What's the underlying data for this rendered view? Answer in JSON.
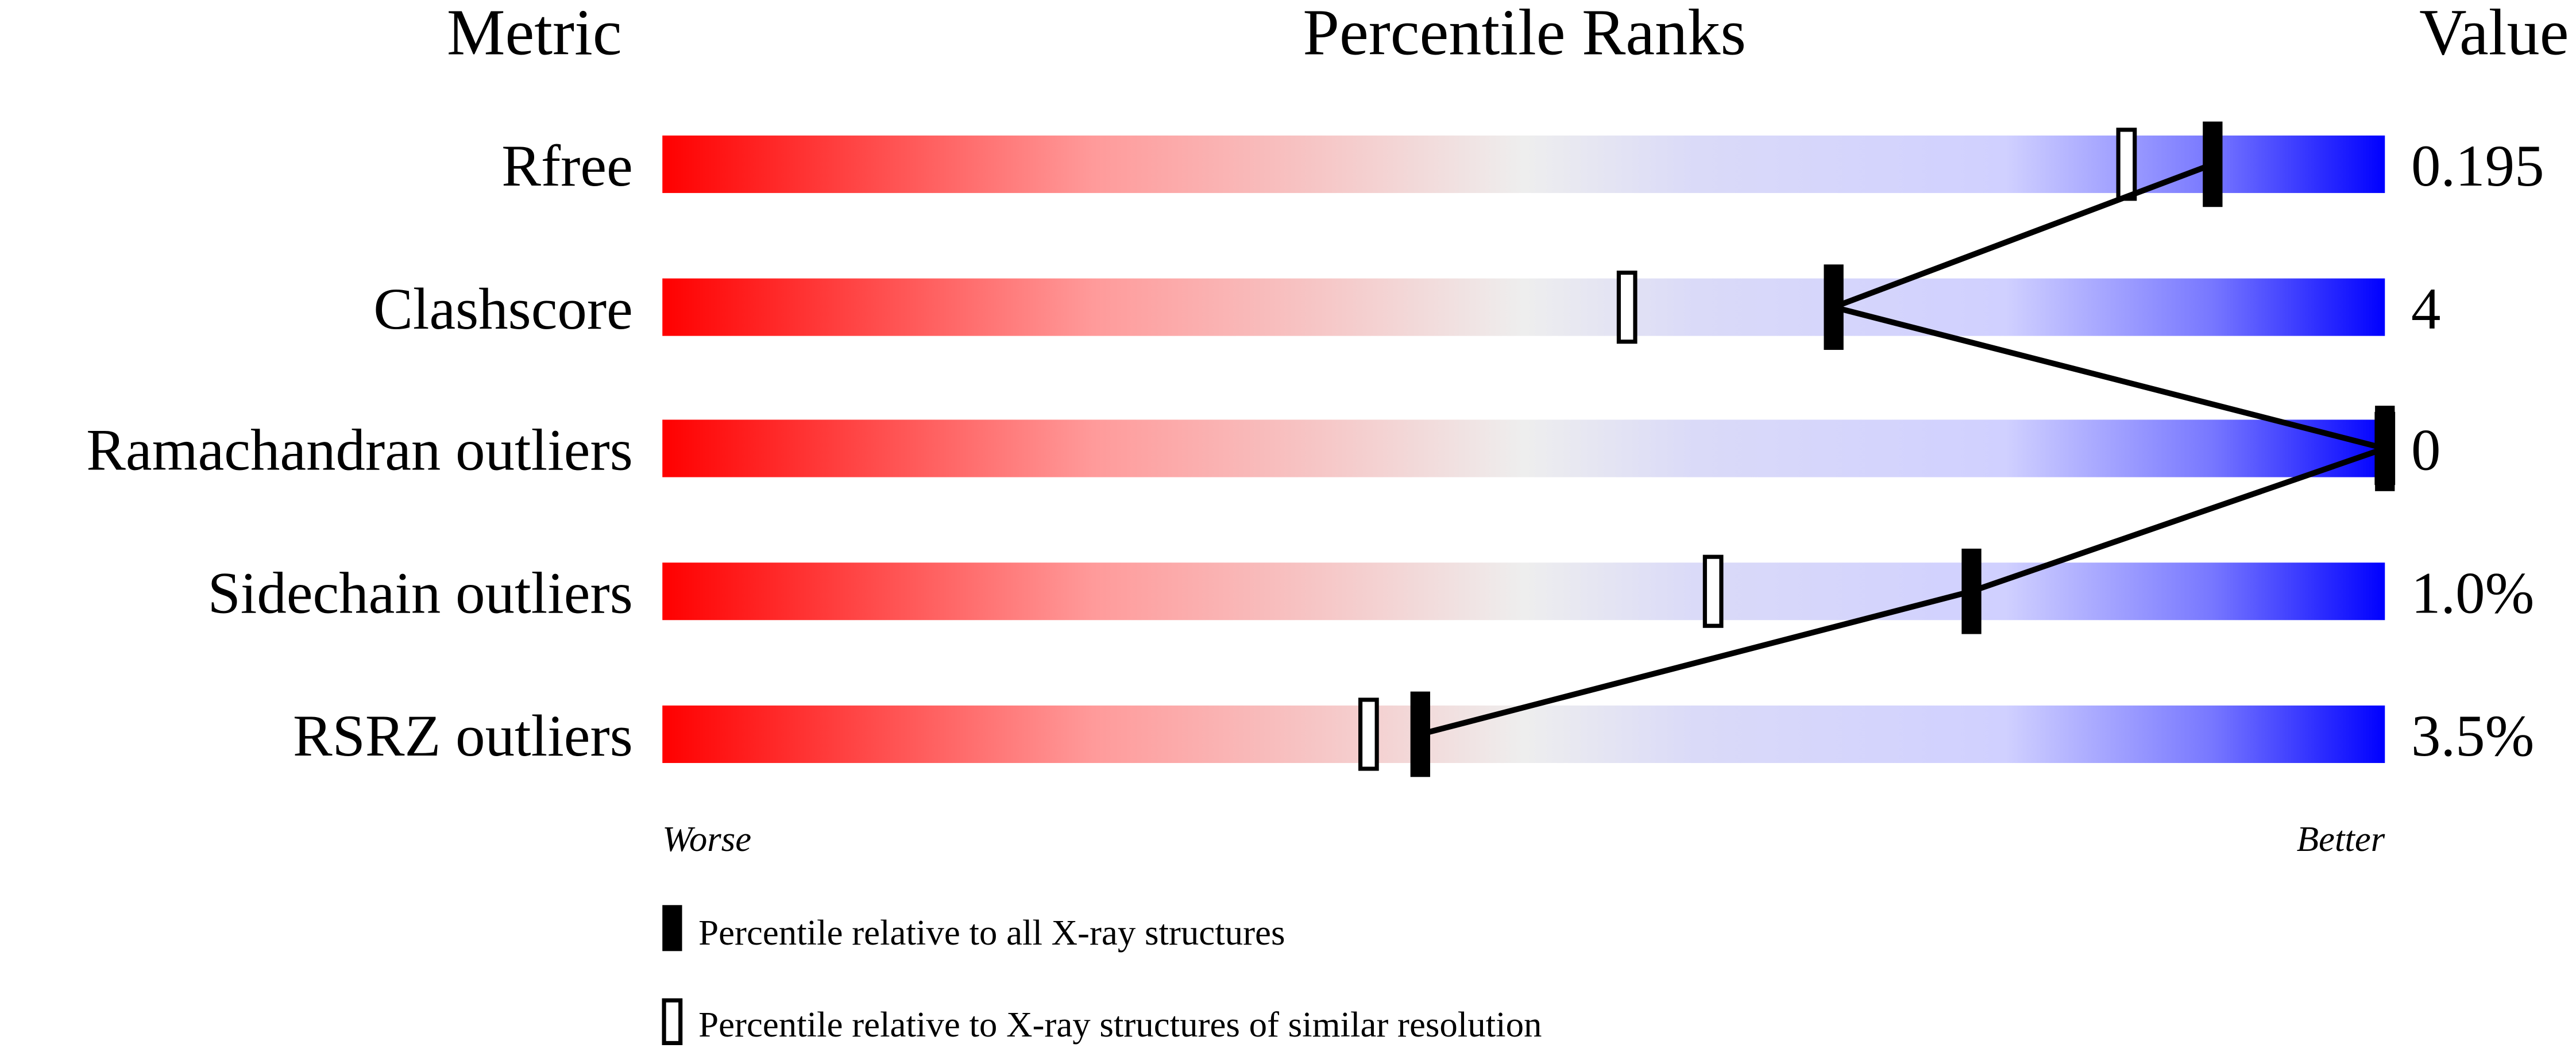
{
  "chart_data": {
    "type": "bar",
    "headers": {
      "metric": "Metric",
      "ranks": "Percentile Ranks",
      "value": "Value"
    },
    "xlim": [
      0,
      100
    ],
    "rows": [
      {
        "metric": "Rfree",
        "value": "0.195",
        "percentile_all": 90,
        "percentile_similar": 85
      },
      {
        "metric": "Clashscore",
        "value": "4",
        "percentile_all": 68,
        "percentile_similar": 56
      },
      {
        "metric": "Ramachandran outliers",
        "value": "0",
        "percentile_all": 100,
        "percentile_similar": 100
      },
      {
        "metric": "Sidechain outliers",
        "value": "1.0%",
        "percentile_all": 76,
        "percentile_similar": 61
      },
      {
        "metric": "RSRZ outliers",
        "value": "3.5%",
        "percentile_all": 44,
        "percentile_similar": 41
      }
    ],
    "axis_labels": {
      "worse": "Worse",
      "better": "Better"
    },
    "legend": [
      {
        "marker": "filled",
        "label": "Percentile relative to all X-ray structures"
      },
      {
        "marker": "open",
        "label": "Percentile relative to X-ray structures of similar resolution"
      }
    ],
    "colors": {
      "worse": "#ff0000",
      "middle": "#eeeeee",
      "better": "#0000ff"
    }
  }
}
